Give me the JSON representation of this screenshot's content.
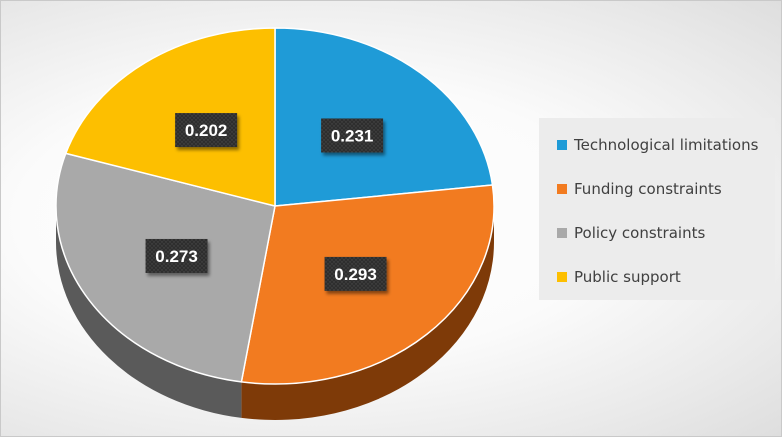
{
  "chart_data": {
    "type": "pie",
    "style": "3d",
    "slices": [
      {
        "label": "Technological limitations",
        "value": 0.231,
        "display": "0.231",
        "color": "#1f9bd7"
      },
      {
        "label": "Funding constraints",
        "value": 0.293,
        "display": "0.293",
        "color": "#f27b20"
      },
      {
        "label": "Policy constraints",
        "value": 0.273,
        "display": "0.273",
        "color": "#a9a9a9"
      },
      {
        "label": "Public support",
        "value": 0.202,
        "display": "0.202",
        "color": "#fdbf00"
      }
    ],
    "slice_side_colors": [
      "#14668f",
      "#7e3a08",
      "#5a5a5a",
      "#a07800"
    ],
    "start_angle_deg": 0,
    "direction": "clockwise",
    "legend_position": "right",
    "data_label_background": "#333333"
  }
}
